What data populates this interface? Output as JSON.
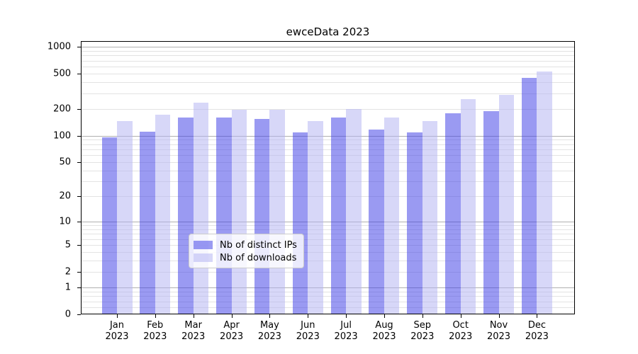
{
  "title": "ewceData 2023",
  "colors": {
    "series_ips": "rgba(62,62,230,0.52)",
    "series_downloads": "rgba(178,178,242,0.52)",
    "major_grid": "#b0b0b0",
    "minor_grid": "#e3e3e3",
    "axis": "#000000",
    "legend_border": "#cbcbcb"
  },
  "chart_data": {
    "type": "bar",
    "title": "ewceData 2023",
    "categories": [
      "Jan",
      "Feb",
      "Mar",
      "Apr",
      "May",
      "Jun",
      "Jul",
      "Aug",
      "Sep",
      "Oct",
      "Nov",
      "Dec"
    ],
    "category_year": "2023",
    "series": [
      {
        "name": "Nb of distinct IPs",
        "color": "rgba(62,62,230,0.52)",
        "values": [
          95,
          111,
          160,
          160,
          155,
          108,
          161,
          117,
          109,
          179,
          189,
          448
        ]
      },
      {
        "name": "Nb of downloads",
        "color": "rgba(178,178,242,0.52)",
        "values": [
          145,
          173,
          234,
          197,
          196,
          145,
          200,
          160,
          146,
          258,
          288,
          527
        ]
      }
    ],
    "xlabel": "",
    "ylabel": "",
    "yscale": "log1p",
    "ylim": [
      0,
      1157
    ],
    "yticks": [
      1000,
      500,
      200,
      100,
      50,
      20,
      10,
      5,
      2,
      1,
      0
    ],
    "major_gridlines": [
      1,
      10,
      100,
      1000
    ],
    "grid": true,
    "legend_position": "lower center"
  }
}
